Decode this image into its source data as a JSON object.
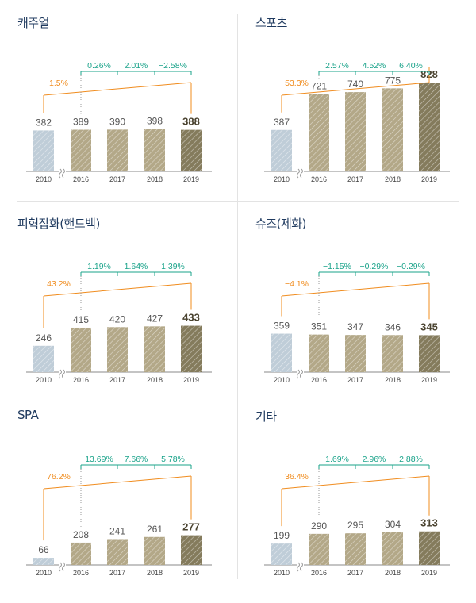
{
  "colors": {
    "base_bar": "#bfcdd8",
    "mid_bar": "#b3a888",
    "last_bar": "#847b5c",
    "orange": "#f08c1e",
    "green": "#1aa38a",
    "title": "#1f3a5f",
    "axis": "#888888"
  },
  "chart_data": [
    {
      "type": "bar",
      "title": "캐주얼",
      "categories": [
        "2010",
        "2016",
        "2017",
        "2018",
        "2019"
      ],
      "values": [
        382,
        389,
        390,
        398,
        388
      ],
      "value_labels": [
        "382",
        "389",
        "390",
        "398",
        "388"
      ],
      "growth": {
        "cagr": "1.5%",
        "yoy": [
          "0.26%",
          "2.01%",
          "−2.58%"
        ]
      }
    },
    {
      "type": "bar",
      "title": "스포츠",
      "categories": [
        "2010",
        "2016",
        "2017",
        "2018",
        "2019"
      ],
      "values": [
        387,
        721,
        740,
        775,
        828
      ],
      "value_labels": [
        "387",
        "721",
        "740",
        "775",
        "828"
      ],
      "growth": {
        "cagr": "53.3%",
        "yoy": [
          "2.57%",
          "4.52%",
          "6.40%"
        ]
      }
    },
    {
      "type": "bar",
      "title": "피혁잡화(핸드백)",
      "categories": [
        "2010",
        "2016",
        "2017",
        "2018",
        "2019"
      ],
      "values": [
        246,
        415,
        420,
        427,
        433
      ],
      "value_labels": [
        "246",
        "415",
        "420",
        "427",
        "433"
      ],
      "growth": {
        "cagr": "43.2%",
        "yoy": [
          "1.19%",
          "1.64%",
          "1.39%"
        ]
      }
    },
    {
      "type": "bar",
      "title": "슈즈(제화)",
      "categories": [
        "2010",
        "2016",
        "2017",
        "2018",
        "2019"
      ],
      "values": [
        359,
        351,
        347,
        346,
        345
      ],
      "value_labels": [
        "359",
        "351",
        "347",
        "346",
        "345"
      ],
      "growth": {
        "cagr": "−4.1%",
        "yoy": [
          "−1.15%",
          "−0.29%",
          "−0.29%"
        ]
      }
    },
    {
      "type": "bar",
      "title": "SPA",
      "categories": [
        "2010",
        "2016",
        "2017",
        "2018",
        "2019"
      ],
      "values": [
        66,
        208,
        241,
        261,
        277
      ],
      "value_labels": [
        "66",
        "208",
        "241",
        "261",
        "277"
      ],
      "growth": {
        "cagr": "76.2%",
        "yoy": [
          "13.69%",
          "7.66%",
          "5.78%"
        ]
      }
    },
    {
      "type": "bar",
      "title": "기타",
      "categories": [
        "2010",
        "2016",
        "2017",
        "2018",
        "2019"
      ],
      "values": [
        199,
        290,
        295,
        304,
        313
      ],
      "value_labels": [
        "199",
        "290",
        "295",
        "304",
        "313"
      ],
      "growth": {
        "cagr": "36.4%",
        "yoy": [
          "1.69%",
          "2.96%",
          "2.88%"
        ]
      }
    }
  ]
}
